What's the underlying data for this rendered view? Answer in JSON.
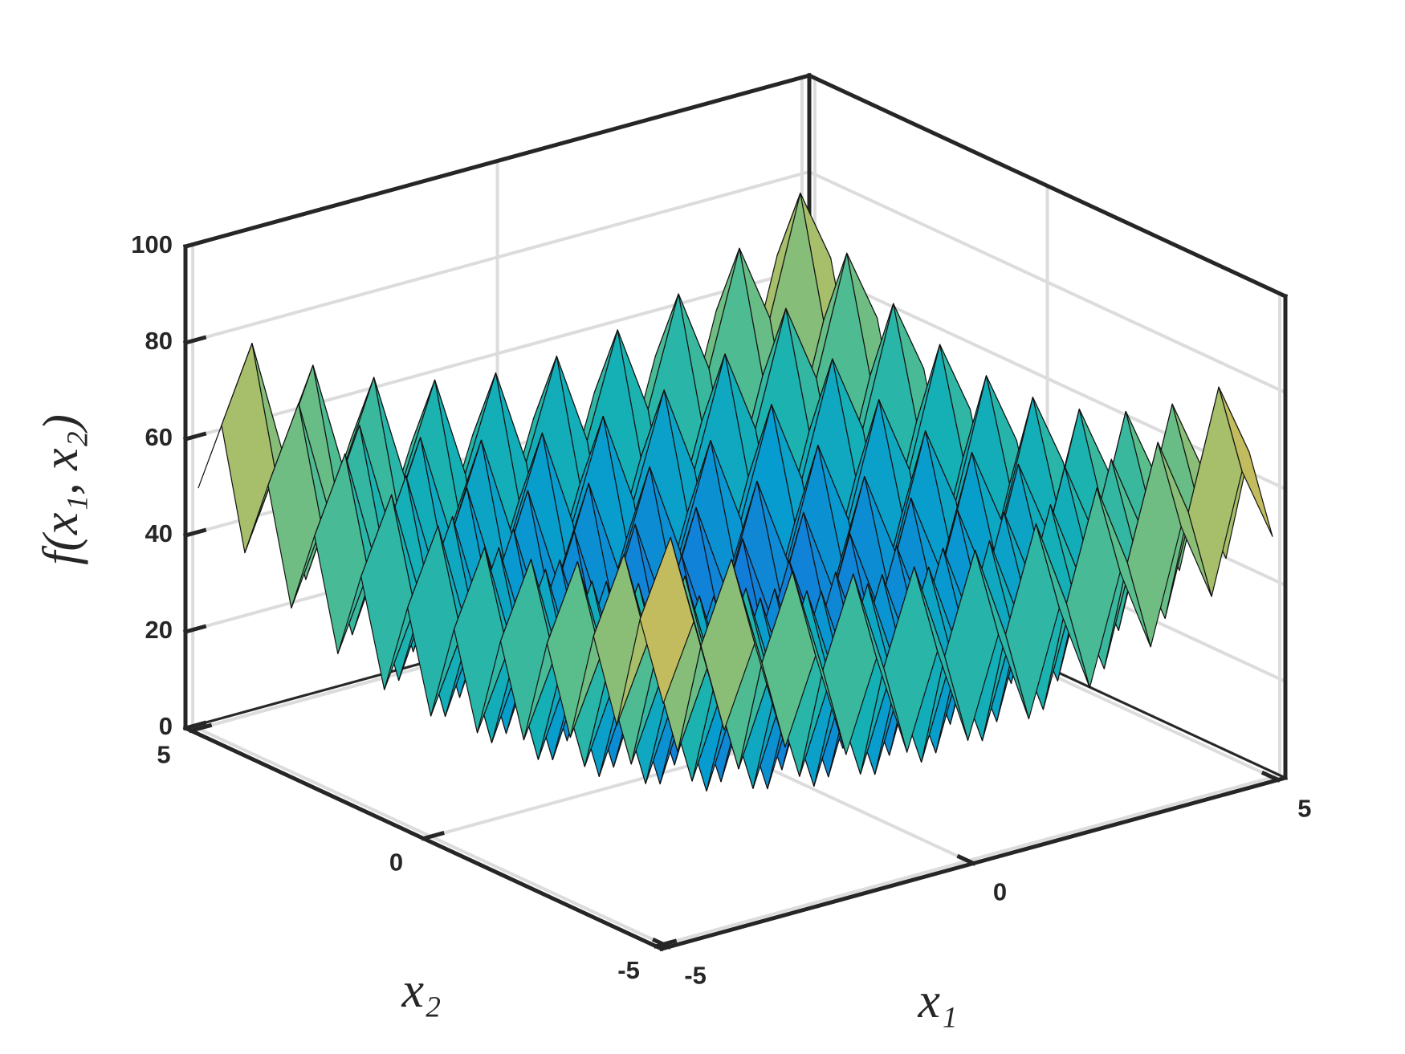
{
  "chart_data": {
    "type": "surface",
    "xlabel": "x₁",
    "ylabel": "x₂",
    "zlabel": "f(x₁, x₂)",
    "x": [
      -5,
      -4.5,
      -4,
      -3.5,
      -3,
      -2.5,
      -2,
      -1.5,
      -1,
      -0.5,
      0,
      0.5,
      1,
      1.5,
      2,
      2.5,
      3,
      3.5,
      4,
      4.5,
      5
    ],
    "y": [
      -5,
      -4.5,
      -4,
      -3.5,
      -3,
      -2.5,
      -2,
      -1.5,
      -1,
      -0.5,
      0,
      0.5,
      1,
      1.5,
      2,
      2.5,
      3,
      3.5,
      4,
      4.5,
      5
    ],
    "z": [
      [
        50,
        65.25,
        41,
        57.25,
        34,
        51.25,
        29,
        47.25,
        26,
        45.25,
        25,
        45.25,
        26,
        47.25,
        29,
        51.25,
        34,
        57.25,
        41,
        65.25,
        50
      ],
      [
        65.25,
        80.5,
        56.25,
        72.5,
        49.25,
        66.5,
        44.25,
        62.5,
        41.25,
        60.5,
        40.25,
        60.5,
        41.25,
        62.5,
        44.25,
        66.5,
        49.25,
        72.5,
        56.25,
        80.5,
        65.25
      ],
      [
        41,
        56.25,
        32,
        48.25,
        25,
        42.25,
        20,
        38.25,
        17,
        36.25,
        16,
        36.25,
        17,
        38.25,
        20,
        42.25,
        25,
        48.25,
        32,
        56.25,
        41
      ],
      [
        57.25,
        72.5,
        48.25,
        64.5,
        41.25,
        58.5,
        36.25,
        54.5,
        33.25,
        52.5,
        32.25,
        52.5,
        33.25,
        54.5,
        36.25,
        58.5,
        41.25,
        64.5,
        48.25,
        72.5,
        57.25
      ],
      [
        34,
        49.25,
        25,
        41.25,
        18,
        35.25,
        13,
        31.25,
        10,
        29.25,
        9,
        29.25,
        10,
        31.25,
        13,
        35.25,
        18,
        41.25,
        25,
        49.25,
        34
      ],
      [
        51.25,
        66.5,
        42.25,
        58.5,
        35.25,
        52.5,
        30.25,
        48.5,
        27.25,
        46.5,
        26.25,
        46.5,
        27.25,
        48.5,
        30.25,
        52.5,
        35.25,
        58.5,
        42.25,
        66.5,
        51.25
      ],
      [
        29,
        44.25,
        20,
        36.25,
        13,
        30.25,
        8,
        26.25,
        5,
        24.25,
        4,
        24.25,
        5,
        26.25,
        8,
        30.25,
        13,
        36.25,
        20,
        44.25,
        29
      ],
      [
        47.25,
        62.5,
        38.25,
        54.5,
        31.25,
        48.5,
        26.25,
        44.5,
        23.25,
        42.5,
        22.25,
        42.5,
        23.25,
        44.5,
        26.25,
        48.5,
        31.25,
        54.5,
        38.25,
        62.5,
        47.25
      ],
      [
        26,
        41.25,
        17,
        33.25,
        10,
        27.25,
        5,
        23.25,
        2,
        21.25,
        1,
        21.25,
        2,
        23.25,
        5,
        27.25,
        10,
        33.25,
        17,
        41.25,
        26
      ],
      [
        45.25,
        60.5,
        36.25,
        52.5,
        29.25,
        46.5,
        24.25,
        42.5,
        21.25,
        40.5,
        20.25,
        40.5,
        21.25,
        42.5,
        24.25,
        46.5,
        29.25,
        52.5,
        36.25,
        60.5,
        45.25
      ],
      [
        25,
        40.25,
        16,
        32.25,
        9,
        26.25,
        4,
        22.25,
        1,
        20.25,
        0,
        20.25,
        1,
        22.25,
        4,
        26.25,
        9,
        32.25,
        16,
        40.25,
        25
      ],
      [
        45.25,
        60.5,
        36.25,
        52.5,
        29.25,
        46.5,
        24.25,
        42.5,
        21.25,
        40.5,
        20.25,
        40.5,
        21.25,
        42.5,
        24.25,
        46.5,
        29.25,
        52.5,
        36.25,
        60.5,
        45.25
      ],
      [
        26,
        41.25,
        17,
        33.25,
        10,
        27.25,
        5,
        23.25,
        2,
        21.25,
        1,
        21.25,
        2,
        23.25,
        5,
        27.25,
        10,
        33.25,
        17,
        41.25,
        26
      ],
      [
        47.25,
        62.5,
        38.25,
        54.5,
        31.25,
        48.5,
        26.25,
        44.5,
        23.25,
        42.5,
        22.25,
        42.5,
        23.25,
        44.5,
        26.25,
        48.5,
        31.25,
        54.5,
        38.25,
        62.5,
        47.25
      ],
      [
        29,
        44.25,
        20,
        36.25,
        13,
        30.25,
        8,
        26.25,
        5,
        24.25,
        4,
        24.25,
        5,
        26.25,
        8,
        30.25,
        13,
        36.25,
        20,
        44.25,
        29
      ],
      [
        51.25,
        66.5,
        42.25,
        58.5,
        35.25,
        52.5,
        30.25,
        48.5,
        27.25,
        46.5,
        26.25,
        46.5,
        27.25,
        48.5,
        30.25,
        52.5,
        35.25,
        58.5,
        42.25,
        66.5,
        51.25
      ],
      [
        34,
        49.25,
        25,
        41.25,
        18,
        35.25,
        13,
        31.25,
        10,
        29.25,
        9,
        29.25,
        10,
        31.25,
        13,
        35.25,
        18,
        41.25,
        25,
        49.25,
        34
      ],
      [
        57.25,
        72.5,
        48.25,
        64.5,
        41.25,
        58.5,
        36.25,
        54.5,
        33.25,
        52.5,
        32.25,
        52.5,
        33.25,
        54.5,
        36.25,
        58.5,
        41.25,
        64.5,
        48.25,
        72.5,
        57.25
      ],
      [
        41,
        56.25,
        32,
        48.25,
        25,
        42.25,
        20,
        38.25,
        17,
        36.25,
        16,
        36.25,
        17,
        38.25,
        20,
        42.25,
        25,
        48.25,
        32,
        56.25,
        41
      ],
      [
        65.25,
        80.5,
        56.25,
        72.5,
        49.25,
        66.5,
        44.25,
        62.5,
        41.25,
        60.5,
        40.25,
        60.5,
        41.25,
        62.5,
        44.25,
        66.5,
        49.25,
        72.5,
        56.25,
        80.5,
        65.25
      ],
      [
        50,
        65.25,
        41,
        57.25,
        34,
        51.25,
        29,
        47.25,
        26,
        45.25,
        25,
        45.25,
        26,
        47.25,
        29,
        51.25,
        34,
        57.25,
        41,
        65.25,
        50
      ]
    ],
    "xlim": [
      -5.12,
      5.12
    ],
    "ylim": [
      -5.12,
      5.12
    ],
    "zlim": [
      0,
      100
    ],
    "xticks": [
      -5,
      0,
      5
    ],
    "yticks": [
      -5,
      0,
      5
    ],
    "zticks": [
      0,
      20,
      40,
      60,
      80,
      100
    ],
    "grid": true,
    "colormap": "parula"
  }
}
